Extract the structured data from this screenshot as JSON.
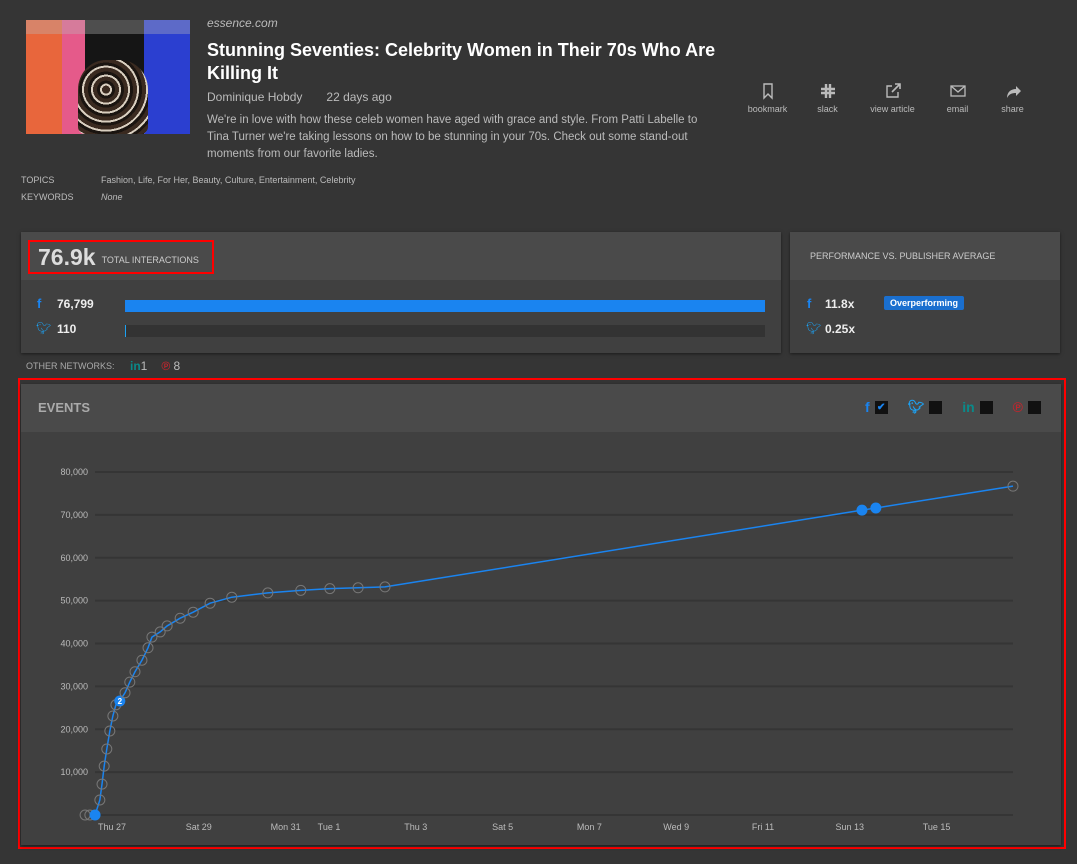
{
  "article": {
    "site": "essence.com",
    "title": "Stunning Seventies: Celebrity Women in Their 70s Who Are Killing It",
    "author": "Dominique Hobdy",
    "age": "22 days ago",
    "description": "We're in love with how these celeb women have aged with grace and style. From Patti Labelle to Tina Turner we're taking lessons on how to be stunning in your 70s. Check out some stand-out moments from our favorite ladies.",
    "topics_label": "TOPICS",
    "topics": "Fashion, Life, For Her, Beauty, Culture, Entertainment, Celebrity",
    "keywords_label": "KEYWORDS",
    "keywords": "None"
  },
  "actions": [
    {
      "label": "bookmark",
      "icon": "bookmark-icon"
    },
    {
      "label": "slack",
      "icon": "slack-icon"
    },
    {
      "label": "view article",
      "icon": "external-link-icon"
    },
    {
      "label": "email",
      "icon": "email-icon"
    },
    {
      "label": "share",
      "icon": "share-icon"
    }
  ],
  "interactions": {
    "total": "76.9k",
    "total_label": "TOTAL INTERACTIONS",
    "facebook": "76,799",
    "twitter": "110",
    "facebook_fraction": 1.0,
    "twitter_fraction": 0.0014,
    "other_label": "OTHER NETWORKS:",
    "linkedin": "1",
    "pinterest": "8"
  },
  "performance": {
    "title": "PERFORMANCE VS. PUBLISHER AVERAGE",
    "facebook": "11.8x",
    "badge": "Overperforming",
    "twitter": "0.25x"
  },
  "events": {
    "title": "EVENTS",
    "legend": [
      {
        "network": "facebook",
        "checked": true,
        "color": "#1a84f0"
      },
      {
        "network": "twitter",
        "checked": false,
        "color": "#1da1f2"
      },
      {
        "network": "linkedin",
        "checked": false,
        "color": "#0a8a8a"
      },
      {
        "network": "pinterest",
        "checked": false,
        "color": "#c0262d"
      }
    ]
  },
  "colors": {
    "accent": "#1a84f0",
    "highlight": "#ff0000"
  },
  "chart_data": {
    "type": "line",
    "title": "EVENTS",
    "xlabel": "",
    "ylabel": "",
    "ylim": [
      0,
      80000
    ],
    "yticks": [
      "10,000",
      "20,000",
      "30,000",
      "40,000",
      "50,000",
      "60,000",
      "70,000",
      "80,000"
    ],
    "xticks": [
      {
        "label": "Thu 27",
        "day": 0
      },
      {
        "label": "Sat 29",
        "day": 2
      },
      {
        "label": "Mon 31",
        "day": 4
      },
      {
        "label": "Tue 1",
        "day": 5
      },
      {
        "label": "Thu 3",
        "day": 7
      },
      {
        "label": "Sat 5",
        "day": 9
      },
      {
        "label": "Mon 7",
        "day": 11
      },
      {
        "label": "Wed 9",
        "day": 13
      },
      {
        "label": "Fri 11",
        "day": 15
      },
      {
        "label": "Sun 13",
        "day": 17
      },
      {
        "label": "Tue 15",
        "day": 19
      }
    ],
    "x_unit": "days since Thu 27",
    "series": [
      {
        "name": "Facebook interactions",
        "points": [
          [
            -0.62,
            0,
            "o"
          ],
          [
            -0.51,
            0,
            "o"
          ],
          [
            -0.39,
            0,
            "f"
          ],
          [
            -0.28,
            3500,
            "o"
          ],
          [
            -0.23,
            7200,
            "o"
          ],
          [
            -0.18,
            11400,
            "o"
          ],
          [
            -0.12,
            15400,
            "o"
          ],
          [
            -0.05,
            19600,
            "o"
          ],
          [
            0.02,
            23100,
            "o"
          ],
          [
            0.09,
            25700,
            "o"
          ],
          [
            0.18,
            26600,
            "f",
            "2"
          ],
          [
            0.3,
            28500,
            "o"
          ],
          [
            0.41,
            31000,
            "o"
          ],
          [
            0.53,
            33400,
            "o"
          ],
          [
            0.69,
            36100,
            "o"
          ],
          [
            0.83,
            39000,
            "o"
          ],
          [
            0.92,
            41500,
            "o"
          ],
          [
            1.11,
            42700,
            "o"
          ],
          [
            1.27,
            44100,
            "o"
          ],
          [
            1.57,
            45900,
            "o"
          ],
          [
            1.87,
            47300,
            "o"
          ],
          [
            2.26,
            49400,
            "o"
          ],
          [
            2.76,
            50800,
            "o"
          ],
          [
            3.59,
            51800,
            "o"
          ],
          [
            4.35,
            52400,
            "o"
          ],
          [
            5.02,
            52800,
            "o"
          ],
          [
            5.67,
            53000,
            "o"
          ],
          [
            6.29,
            53200,
            "o"
          ],
          [
            17.28,
            71100,
            "f"
          ],
          [
            17.6,
            71600,
            "f"
          ],
          [
            20.76,
            76700,
            "o"
          ]
        ]
      }
    ]
  }
}
